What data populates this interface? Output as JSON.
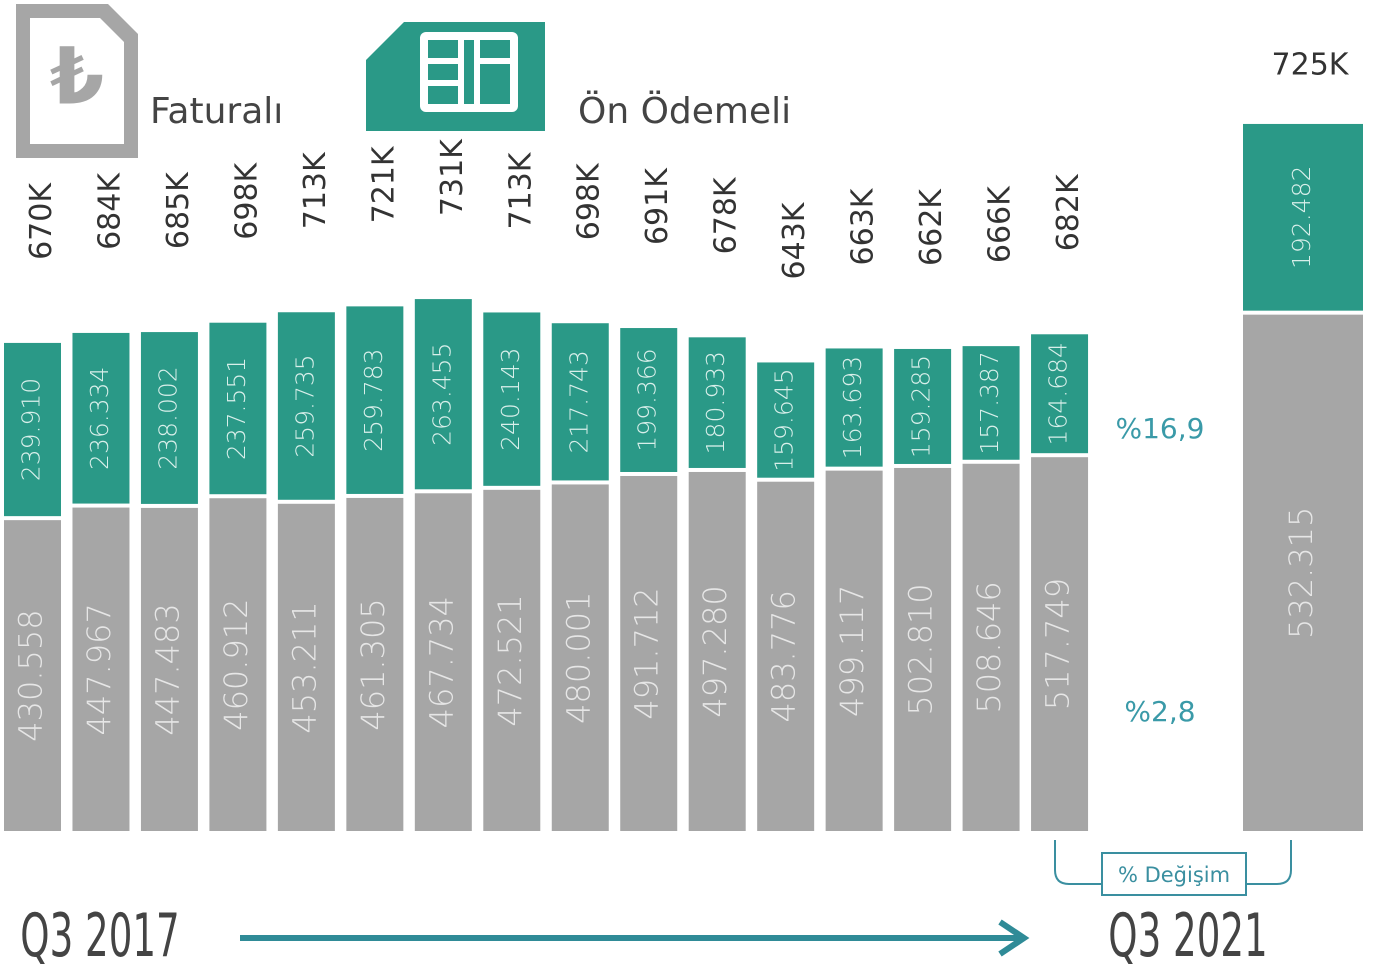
{
  "chart_data": {
    "type": "stacked_bar",
    "categories": [
      null,
      null,
      null,
      null,
      null,
      null,
      null,
      null,
      null,
      null,
      null,
      null,
      null,
      null,
      null,
      null,
      null
    ],
    "series": [
      {
        "name": "Faturalı",
        "color": "#a6a6a6",
        "values": [
          430558,
          447967,
          447483,
          460912,
          453211,
          461305,
          467734,
          472521,
          480001,
          491712,
          497280,
          483776,
          499117,
          502810,
          508646,
          517749,
          532315
        ],
        "value_labels": [
          "430.558",
          "447.967",
          "447.483",
          "460.912",
          "453.211",
          "461.305",
          "467.734",
          "472.521",
          "480.001",
          "491.712",
          "497.280",
          "483.776",
          "499.117",
          "502.810",
          "508.646",
          "517.749",
          "532.315"
        ]
      },
      {
        "name": "Ön Ödemeli",
        "color": "#2a9987",
        "values": [
          239910,
          236334,
          238002,
          237551,
          259735,
          259783,
          263455,
          240143,
          217743,
          199366,
          180933,
          159645,
          163693,
          159285,
          157387,
          164684,
          192482
        ],
        "value_labels": [
          "239.910",
          "236.334",
          "238.002",
          "237.551",
          "259.735",
          "259.783",
          "263.455",
          "240.143",
          "217.743",
          "199.366",
          "180.933",
          "159.645",
          "163.693",
          "159.285",
          "157.387",
          "164.684",
          "192.482"
        ]
      }
    ],
    "totals": {
      "values": [
        670000,
        684000,
        685000,
        698000,
        713000,
        721000,
        731000,
        713000,
        698000,
        691000,
        678000,
        643000,
        663000,
        662000,
        666000,
        682000,
        725000
      ],
      "value_labels": [
        "670K",
        "684K",
        "685K",
        "698K",
        "713K",
        "721K",
        "731K",
        "713K",
        "698K",
        "691K",
        "678K",
        "643K",
        "663K",
        "662K",
        "666K",
        "682K",
        "725K"
      ]
    },
    "changes": [
      {
        "value": 16.9,
        "label": "%16,9"
      },
      {
        "value": 2.8,
        "label": "%2,8"
      }
    ],
    "change_title": "% Değişim",
    "start_label": "Q3 2017",
    "end_label": "Q3 2021"
  }
}
